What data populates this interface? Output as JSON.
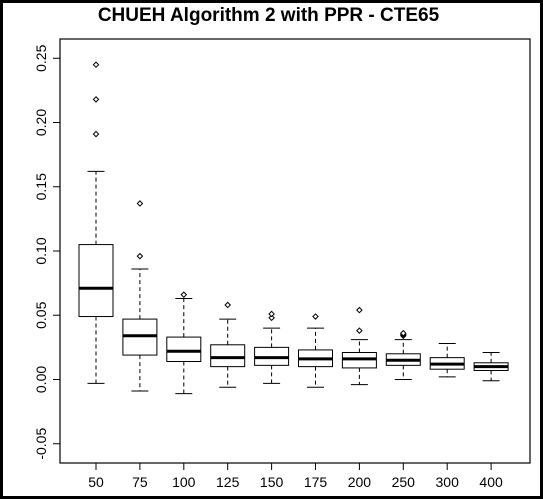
{
  "chart_data": {
    "type": "boxplot",
    "title": "CHUEH Algorithm 2 with PPR - CTE65",
    "xlabel": "",
    "ylabel": "",
    "ylim": [
      -0.065,
      0.265
    ],
    "yticks": [
      -0.05,
      0.0,
      0.05,
      0.1,
      0.15,
      0.2,
      0.25
    ],
    "ytick_labels": [
      "-0.05",
      "0.00",
      "0.05",
      "0.10",
      "0.15",
      "0.20",
      "0.25"
    ],
    "categories": [
      "50",
      "75",
      "100",
      "125",
      "150",
      "175",
      "200",
      "250",
      "300",
      "400"
    ],
    "boxes": [
      {
        "category": "50",
        "min": -0.003,
        "q1": 0.049,
        "median": 0.071,
        "q3": 0.105,
        "max": 0.162,
        "outliers": [
          0.191,
          0.218,
          0.245
        ]
      },
      {
        "category": "75",
        "min": -0.009,
        "q1": 0.019,
        "median": 0.034,
        "q3": 0.047,
        "max": 0.086,
        "outliers": [
          0.096,
          0.137
        ]
      },
      {
        "category": "100",
        "min": -0.011,
        "q1": 0.014,
        "median": 0.022,
        "q3": 0.033,
        "max": 0.063,
        "outliers": [
          0.066
        ]
      },
      {
        "category": "125",
        "min": -0.006,
        "q1": 0.01,
        "median": 0.017,
        "q3": 0.027,
        "max": 0.047,
        "outliers": [
          0.058
        ]
      },
      {
        "category": "150",
        "min": -0.003,
        "q1": 0.011,
        "median": 0.017,
        "q3": 0.025,
        "max": 0.04,
        "outliers": [
          0.048,
          0.051
        ]
      },
      {
        "category": "175",
        "min": -0.006,
        "q1": 0.01,
        "median": 0.016,
        "q3": 0.023,
        "max": 0.04,
        "outliers": [
          0.049
        ]
      },
      {
        "category": "200",
        "min": -0.004,
        "q1": 0.009,
        "median": 0.016,
        "q3": 0.021,
        "max": 0.031,
        "outliers": [
          0.038,
          0.054
        ]
      },
      {
        "category": "250",
        "min": 0.0,
        "q1": 0.011,
        "median": 0.015,
        "q3": 0.02,
        "max": 0.031,
        "outliers": [
          0.034,
          0.035,
          0.036
        ]
      },
      {
        "category": "300",
        "min": 0.002,
        "q1": 0.008,
        "median": 0.012,
        "q3": 0.017,
        "max": 0.028,
        "outliers": []
      },
      {
        "category": "400",
        "min": -0.001,
        "q1": 0.007,
        "median": 0.01,
        "q3": 0.013,
        "max": 0.021,
        "outliers": []
      }
    ],
    "grid": false,
    "legend": "none"
  }
}
